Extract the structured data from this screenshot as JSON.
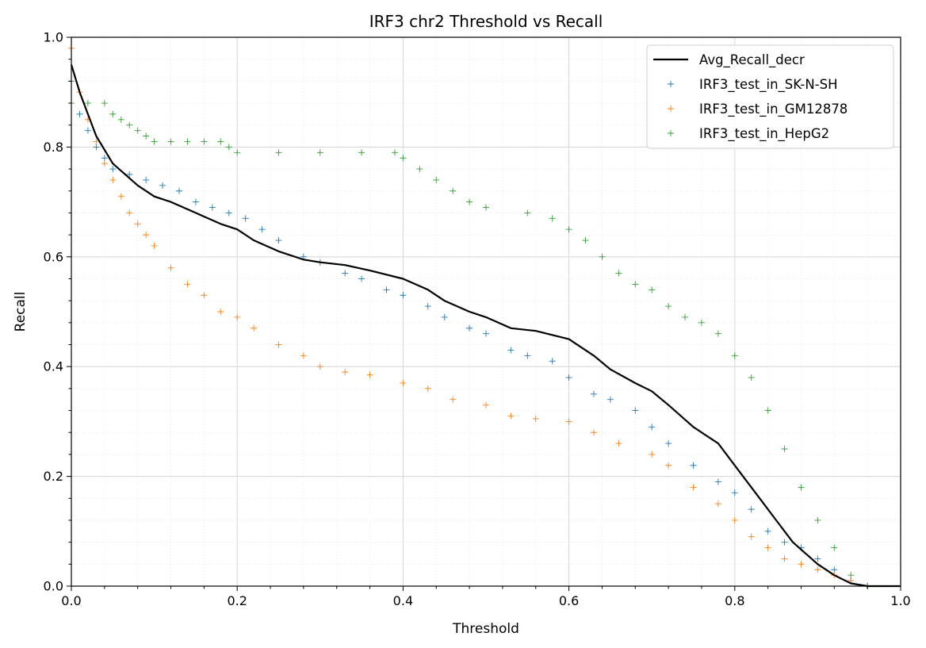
{
  "chart_data": {
    "type": "scatter",
    "title": "IRF3 chr2 Threshold vs Recall",
    "xlabel": "Threshold",
    "ylabel": "Recall",
    "xlim": [
      0,
      1
    ],
    "ylim": [
      0,
      1
    ],
    "xticks": [
      "0.0",
      "0.2",
      "0.4",
      "0.6",
      "0.8",
      "1.0"
    ],
    "yticks": [
      "0.0",
      "0.2",
      "0.4",
      "0.6",
      "0.8",
      "1.0"
    ],
    "grid": true,
    "minor_grid": true,
    "legend_position": "top-right",
    "series": [
      {
        "name": "Avg_Recall_decr",
        "kind": "line",
        "color": "#000000",
        "x": [
          0.0,
          0.01,
          0.02,
          0.03,
          0.05,
          0.08,
          0.1,
          0.12,
          0.15,
          0.18,
          0.2,
          0.22,
          0.25,
          0.28,
          0.3,
          0.33,
          0.36,
          0.4,
          0.43,
          0.45,
          0.48,
          0.5,
          0.53,
          0.56,
          0.6,
          0.63,
          0.65,
          0.68,
          0.7,
          0.72,
          0.75,
          0.78,
          0.8,
          0.82,
          0.85,
          0.87,
          0.9,
          0.92,
          0.94,
          0.96,
          1.0
        ],
        "y": [
          0.95,
          0.9,
          0.86,
          0.82,
          0.77,
          0.73,
          0.71,
          0.7,
          0.68,
          0.66,
          0.65,
          0.63,
          0.61,
          0.595,
          0.59,
          0.585,
          0.575,
          0.56,
          0.54,
          0.52,
          0.5,
          0.49,
          0.47,
          0.465,
          0.45,
          0.42,
          0.395,
          0.37,
          0.355,
          0.33,
          0.29,
          0.26,
          0.22,
          0.18,
          0.12,
          0.08,
          0.04,
          0.02,
          0.005,
          0.0,
          0.0
        ]
      },
      {
        "name": "IRF3_test_in_SK-N-SH",
        "kind": "scatter",
        "color": "#1f77b4",
        "x": [
          0.0,
          0.01,
          0.02,
          0.03,
          0.04,
          0.05,
          0.07,
          0.09,
          0.11,
          0.13,
          0.15,
          0.17,
          0.19,
          0.21,
          0.23,
          0.25,
          0.28,
          0.3,
          0.33,
          0.35,
          0.38,
          0.4,
          0.43,
          0.45,
          0.48,
          0.5,
          0.53,
          0.55,
          0.58,
          0.6,
          0.63,
          0.65,
          0.68,
          0.7,
          0.72,
          0.75,
          0.78,
          0.8,
          0.82,
          0.84,
          0.86,
          0.88,
          0.9,
          0.92,
          0.94,
          0.96
        ],
        "y": [
          0.92,
          0.86,
          0.83,
          0.8,
          0.78,
          0.76,
          0.75,
          0.74,
          0.73,
          0.72,
          0.7,
          0.69,
          0.68,
          0.67,
          0.65,
          0.63,
          0.6,
          0.59,
          0.57,
          0.56,
          0.54,
          0.53,
          0.51,
          0.49,
          0.47,
          0.46,
          0.43,
          0.42,
          0.41,
          0.38,
          0.35,
          0.34,
          0.32,
          0.29,
          0.26,
          0.22,
          0.19,
          0.17,
          0.14,
          0.1,
          0.08,
          0.07,
          0.05,
          0.03,
          0.01,
          0.0
        ]
      },
      {
        "name": "IRF3_test_in_GM12878",
        "kind": "scatter",
        "color": "#ff7f0e",
        "x": [
          0.0,
          0.01,
          0.02,
          0.03,
          0.04,
          0.05,
          0.06,
          0.07,
          0.08,
          0.09,
          0.1,
          0.12,
          0.14,
          0.16,
          0.18,
          0.2,
          0.22,
          0.25,
          0.28,
          0.3,
          0.33,
          0.36,
          0.4,
          0.43,
          0.46,
          0.5,
          0.53,
          0.56,
          0.6,
          0.63,
          0.66,
          0.7,
          0.72,
          0.75,
          0.78,
          0.8,
          0.82,
          0.84,
          0.86,
          0.88,
          0.9,
          0.92,
          0.94,
          0.96
        ],
        "y": [
          0.98,
          0.9,
          0.85,
          0.81,
          0.77,
          0.74,
          0.71,
          0.68,
          0.66,
          0.64,
          0.62,
          0.58,
          0.55,
          0.53,
          0.5,
          0.49,
          0.47,
          0.44,
          0.42,
          0.4,
          0.39,
          0.385,
          0.37,
          0.36,
          0.34,
          0.33,
          0.31,
          0.305,
          0.3,
          0.28,
          0.26,
          0.24,
          0.22,
          0.18,
          0.15,
          0.12,
          0.09,
          0.07,
          0.05,
          0.04,
          0.03,
          0.02,
          0.01,
          0.0
        ]
      },
      {
        "name": "IRF3_test_in_HepG2",
        "kind": "scatter",
        "color": "#2ca02c",
        "x": [
          0.0,
          0.02,
          0.04,
          0.05,
          0.06,
          0.07,
          0.08,
          0.09,
          0.1,
          0.12,
          0.14,
          0.16,
          0.18,
          0.19,
          0.2,
          0.25,
          0.3,
          0.35,
          0.39,
          0.4,
          0.42,
          0.44,
          0.46,
          0.48,
          0.5,
          0.55,
          0.58,
          0.6,
          0.62,
          0.64,
          0.66,
          0.68,
          0.7,
          0.72,
          0.74,
          0.76,
          0.78,
          0.8,
          0.82,
          0.84,
          0.86,
          0.88,
          0.9,
          0.92,
          0.94,
          0.96
        ],
        "y": [
          0.88,
          0.88,
          0.88,
          0.86,
          0.85,
          0.84,
          0.83,
          0.82,
          0.81,
          0.81,
          0.81,
          0.81,
          0.81,
          0.8,
          0.79,
          0.79,
          0.79,
          0.79,
          0.79,
          0.78,
          0.76,
          0.74,
          0.72,
          0.7,
          0.69,
          0.68,
          0.67,
          0.65,
          0.63,
          0.6,
          0.57,
          0.55,
          0.54,
          0.51,
          0.49,
          0.48,
          0.46,
          0.42,
          0.38,
          0.32,
          0.25,
          0.18,
          0.12,
          0.07,
          0.02,
          0.0
        ]
      }
    ]
  }
}
